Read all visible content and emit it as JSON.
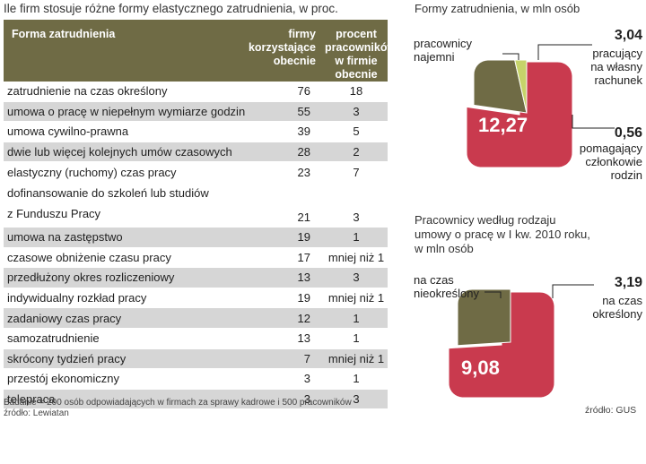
{
  "table": {
    "title": "Ile  firm stosuje różne formy elastycznego zatrudnienia, w proc.",
    "headers": {
      "col1": "Forma zatrudnienia",
      "col2_line1": "firmy korzystające",
      "col2_line2": "obecnie",
      "col3_line1": "procent pracowników",
      "col3_line2": "w firmie obecnie"
    },
    "rows": [
      {
        "form": "zatrudnienie na czas określony",
        "firms": "76",
        "percent": "18"
      },
      {
        "form": "umowa o pracę w niepełnym wymiarze godzin",
        "firms": "55",
        "percent": "3"
      },
      {
        "form": "umowa cywilno-prawna",
        "firms": "39",
        "percent": "5"
      },
      {
        "form": "dwie lub więcej kolejnych umów czasowych",
        "firms": "28",
        "percent": "2"
      },
      {
        "form": "elastyczny (ruchomy) czas pracy",
        "firms": "23",
        "percent": "7"
      },
      {
        "form_line1": "dofinansowanie do szkoleń lub studiów",
        "form_line2": "z Funduszu Pracy",
        "firms": "21",
        "percent": "3"
      },
      {
        "form": "umowa na zastępstwo",
        "firms": "19",
        "percent": "1"
      },
      {
        "form": "czasowe obniżenie czasu pracy",
        "firms": "17",
        "percent": "mniej niż 1"
      },
      {
        "form": "przedłużony okres rozliczeniowy",
        "firms": "13",
        "percent": "3"
      },
      {
        "form": "indywidualny rozkład pracy",
        "firms": "19",
        "percent": "mniej niż 1"
      },
      {
        "form": "zadaniowy czas pracy",
        "firms": "12",
        "percent": "1"
      },
      {
        "form": "samozatrudnienie",
        "firms": "13",
        "percent": "1"
      },
      {
        "form": "skrócony tydzień pracy",
        "firms": "7",
        "percent": "mniej niż 1"
      },
      {
        "form": "przestój ekonomiczny",
        "firms": "3",
        "percent": "1"
      },
      {
        "form": "telepraca",
        "firms": "3",
        "percent": "3"
      }
    ],
    "note": "Badanie = 200 osób odpowiadających w firmach za sprawy kadrowe i 500 pracowników",
    "source": "źródło: Lewiatan"
  },
  "colors": {
    "header_bg": "#6f6b45",
    "red": "#c93a4e",
    "olive": "#6f6b45",
    "light_green": "#c6d36a",
    "row_alt": "#d6d6d6"
  },
  "chart_data": [
    {
      "type": "pie",
      "title": "Formy zatrudnienia, w mln osób",
      "categories": [
        "pracownicy najemni",
        "pracujący na własny rachunek",
        "pomagający członkowie rodzin"
      ],
      "values": [
        12.27,
        3.04,
        0.56
      ],
      "value_labels": [
        "12,27",
        "3,04",
        "0,56"
      ],
      "labels": {
        "a_line1": "pracownicy",
        "a_line2": "najemni",
        "b_line1": "pracujący",
        "b_line2": "na własny",
        "b_line3": "rachunek",
        "c_line1": "pomagający",
        "c_line2": "członkowie",
        "c_line3": "rodzin"
      }
    },
    {
      "type": "pie",
      "title_line1": "Pracownicy według rodzaju",
      "title_line2": "umowy o pracę w I kw. 2010 roku,",
      "title_line3": "w mln osób",
      "categories": [
        "na czas nieokreślony",
        "na czas określony"
      ],
      "values": [
        9.08,
        3.19
      ],
      "value_labels": [
        "9,08",
        "3,19"
      ],
      "labels": {
        "a_line1": "na czas",
        "a_line2": "nieokreślony",
        "b_line1": "na czas",
        "b_line2": "określony"
      },
      "source": "źródło: GUS"
    }
  ]
}
